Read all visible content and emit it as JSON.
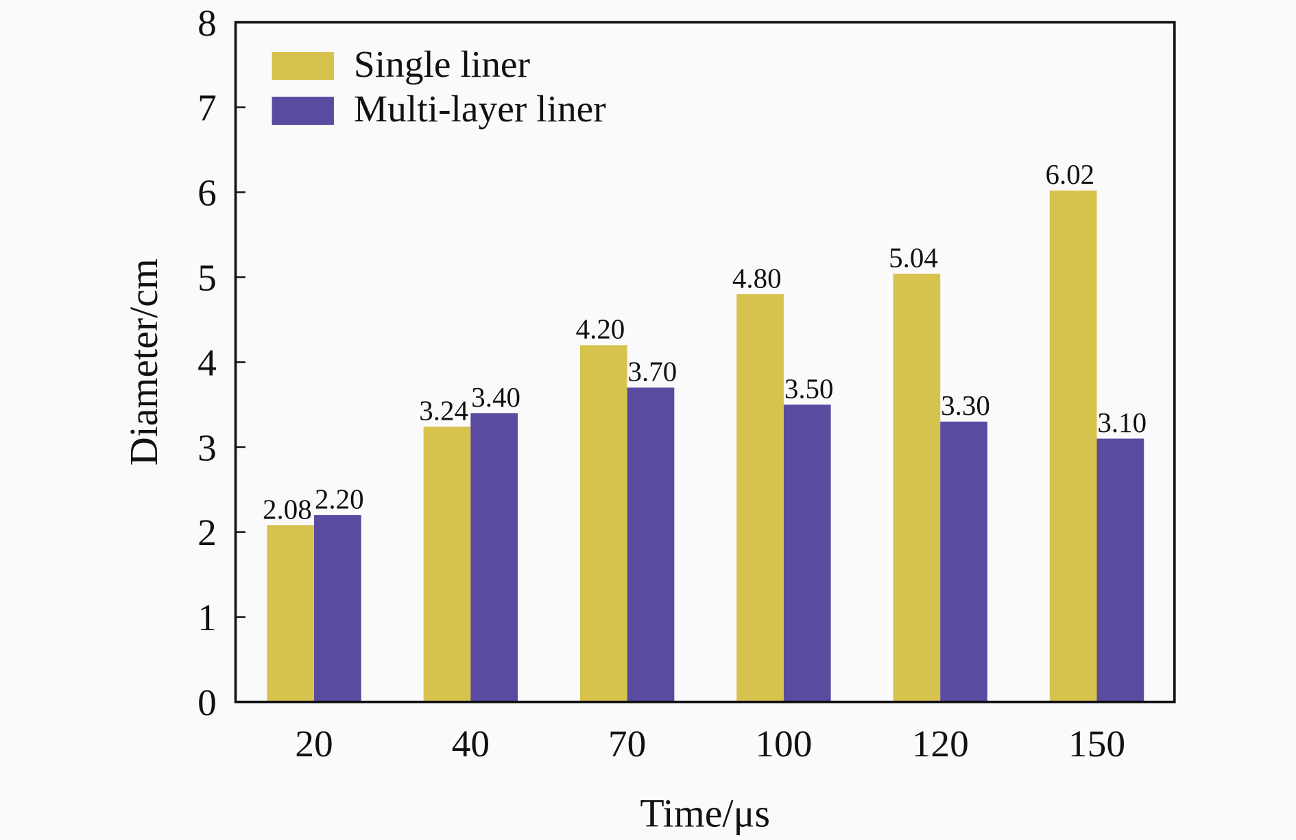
{
  "chart_data": {
    "type": "bar",
    "title": "",
    "xlabel": "Time/μs",
    "ylabel": "Diameter/cm",
    "categories": [
      "20",
      "40",
      "70",
      "100",
      "120",
      "150"
    ],
    "series": [
      {
        "name": "Single liner",
        "color": "#d8c24e",
        "values": [
          2.08,
          3.24,
          4.2,
          4.8,
          5.04,
          6.02
        ],
        "labels": [
          "2.08",
          "3.24",
          "4.20",
          "4.80",
          "5.04",
          "6.02"
        ]
      },
      {
        "name": "Multi-layer liner",
        "color": "#5a4aa0",
        "values": [
          2.2,
          3.4,
          3.7,
          3.5,
          3.3,
          3.1
        ],
        "labels": [
          "2.20",
          "3.40",
          "3.70",
          "3.50",
          "3.30",
          "3.10"
        ]
      }
    ],
    "ylim": [
      0,
      8
    ],
    "yticks": [
      "0",
      "1",
      "2",
      "3",
      "4",
      "5",
      "6",
      "7",
      "8"
    ],
    "grid": false,
    "legend_position": "top-left"
  }
}
